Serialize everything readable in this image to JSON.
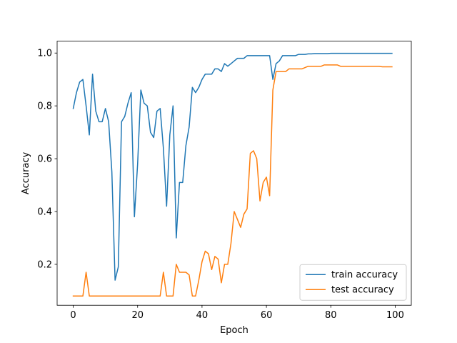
{
  "chart_data": {
    "type": "line",
    "title": "",
    "xlabel": "Epoch",
    "ylabel": "Accuracy",
    "xlim": [
      -5,
      105
    ],
    "ylim": [
      0.045,
      1.045
    ],
    "xticks": [
      0,
      20,
      40,
      60,
      80,
      100
    ],
    "xtick_labels": [
      "0",
      "20",
      "40",
      "60",
      "80",
      "100"
    ],
    "yticks": [
      0.2,
      0.4,
      0.6,
      0.8,
      1.0
    ],
    "ytick_labels": [
      "0.2",
      "0.4",
      "0.6",
      "0.8",
      "1.0"
    ],
    "grid": false,
    "legend_position": "lower-right",
    "x": [
      0,
      1,
      2,
      3,
      4,
      5,
      6,
      7,
      8,
      9,
      10,
      11,
      12,
      13,
      14,
      15,
      16,
      17,
      18,
      19,
      20,
      21,
      22,
      23,
      24,
      25,
      26,
      27,
      28,
      29,
      30,
      31,
      32,
      33,
      34,
      35,
      36,
      37,
      38,
      39,
      40,
      41,
      42,
      43,
      44,
      45,
      46,
      47,
      48,
      49,
      50,
      51,
      52,
      53,
      54,
      55,
      56,
      57,
      58,
      59,
      60,
      61,
      62,
      63,
      64,
      65,
      66,
      67,
      68,
      69,
      70,
      71,
      72,
      73,
      74,
      75,
      76,
      77,
      78,
      79,
      80,
      81,
      82,
      83,
      84,
      85,
      86,
      87,
      88,
      89,
      90,
      91,
      92,
      93,
      94,
      95,
      96,
      97,
      98,
      99
    ],
    "series": [
      {
        "name": "train accuracy",
        "color": "#1f77b4",
        "values": [
          0.79,
          0.85,
          0.89,
          0.9,
          0.8,
          0.69,
          0.92,
          0.78,
          0.74,
          0.74,
          0.79,
          0.74,
          0.55,
          0.14,
          0.19,
          0.74,
          0.76,
          0.81,
          0.85,
          0.38,
          0.58,
          0.86,
          0.81,
          0.8,
          0.7,
          0.68,
          0.78,
          0.79,
          0.64,
          0.42,
          0.69,
          0.8,
          0.3,
          0.51,
          0.51,
          0.65,
          0.72,
          0.87,
          0.85,
          0.87,
          0.9,
          0.92,
          0.92,
          0.92,
          0.94,
          0.94,
          0.93,
          0.96,
          0.95,
          0.96,
          0.97,
          0.98,
          0.98,
          0.98,
          0.99,
          0.99,
          0.99,
          0.99,
          0.99,
          0.99,
          0.99,
          0.99,
          0.9,
          0.96,
          0.97,
          0.99,
          0.99,
          0.99,
          0.99,
          0.99,
          0.995,
          0.995,
          0.995,
          0.997,
          0.997,
          0.998,
          0.998,
          0.998,
          0.998,
          0.998,
          0.999,
          0.999,
          0.999,
          0.999,
          0.999,
          0.999,
          0.999,
          0.999,
          0.999,
          0.999,
          0.999,
          0.999,
          0.999,
          0.999,
          0.999,
          0.999,
          0.999,
          0.999,
          0.999,
          0.999
        ]
      },
      {
        "name": "test accuracy",
        "color": "#ff7f0e",
        "values": [
          0.08,
          0.08,
          0.08,
          0.08,
          0.17,
          0.08,
          0.08,
          0.08,
          0.08,
          0.08,
          0.08,
          0.08,
          0.08,
          0.08,
          0.08,
          0.08,
          0.08,
          0.08,
          0.08,
          0.08,
          0.08,
          0.08,
          0.08,
          0.08,
          0.08,
          0.08,
          0.08,
          0.08,
          0.17,
          0.08,
          0.08,
          0.08,
          0.2,
          0.17,
          0.17,
          0.17,
          0.16,
          0.08,
          0.08,
          0.14,
          0.21,
          0.25,
          0.24,
          0.18,
          0.23,
          0.22,
          0.13,
          0.2,
          0.2,
          0.28,
          0.4,
          0.37,
          0.34,
          0.39,
          0.41,
          0.62,
          0.63,
          0.6,
          0.44,
          0.51,
          0.53,
          0.46,
          0.86,
          0.93,
          0.93,
          0.93,
          0.93,
          0.94,
          0.94,
          0.94,
          0.94,
          0.94,
          0.945,
          0.95,
          0.95,
          0.95,
          0.95,
          0.95,
          0.955,
          0.955,
          0.955,
          0.955,
          0.955,
          0.95,
          0.95,
          0.95,
          0.95,
          0.95,
          0.95,
          0.95,
          0.95,
          0.95,
          0.95,
          0.95,
          0.95,
          0.95,
          0.948,
          0.948,
          0.948,
          0.948
        ]
      }
    ]
  }
}
